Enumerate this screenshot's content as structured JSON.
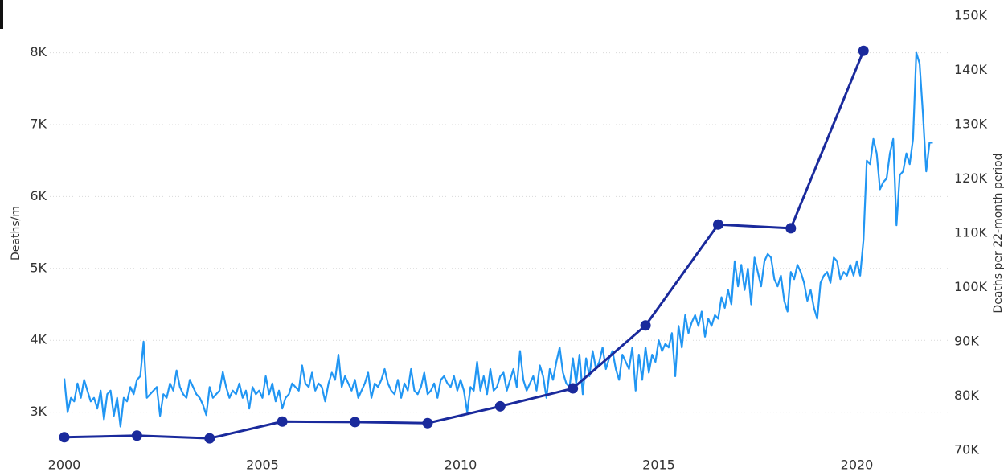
{
  "chart_data": {
    "type": "line",
    "y_label": "Deaths/m",
    "y2_label": "Deaths per 22-month period",
    "xlim": [
      2000,
      2022
    ],
    "xticks": [
      2000,
      2005,
      2010,
      2015,
      2020
    ],
    "ylim": [
      2470,
      8510
    ],
    "yticks": [
      {
        "value": 3000,
        "label": "3K"
      },
      {
        "value": 4000,
        "label": "4K"
      },
      {
        "value": 5000,
        "label": "5K"
      },
      {
        "value": 6000,
        "label": "6K"
      },
      {
        "value": 7000,
        "label": "7K"
      },
      {
        "value": 8000,
        "label": "8K"
      }
    ],
    "y2lim": [
      70000,
      150000
    ],
    "y2ticks": [
      {
        "value": 70000,
        "label": "70K"
      },
      {
        "value": 80000,
        "label": "80K"
      },
      {
        "value": 90000,
        "label": "90K"
      },
      {
        "value": 100000,
        "label": "100K"
      },
      {
        "value": 110000,
        "label": "110K"
      },
      {
        "value": 120000,
        "label": "120K"
      },
      {
        "value": 130000,
        "label": "130K"
      },
      {
        "value": 140000,
        "label": "140K"
      },
      {
        "value": 150000,
        "label": "150K"
      }
    ],
    "grid": true,
    "series": [
      {
        "color": "#2196f3",
        "axis": "y",
        "markers": false,
        "x": [
          2000,
          2000.083,
          2000.167,
          2000.25,
          2000.333,
          2000.417,
          2000.5,
          2000.583,
          2000.667,
          2000.75,
          2000.833,
          2000.917,
          2001,
          2001.083,
          2001.167,
          2001.25,
          2001.333,
          2001.417,
          2001.5,
          2001.583,
          2001.667,
          2001.75,
          2001.833,
          2001.917,
          2002,
          2002.083,
          2002.167,
          2002.25,
          2002.333,
          2002.417,
          2002.5,
          2002.583,
          2002.667,
          2002.75,
          2002.833,
          2002.917,
          2003,
          2003.083,
          2003.167,
          2003.25,
          2003.333,
          2003.417,
          2003.5,
          2003.583,
          2003.667,
          2003.75,
          2003.833,
          2003.917,
          2004,
          2004.083,
          2004.167,
          2004.25,
          2004.333,
          2004.417,
          2004.5,
          2004.583,
          2004.667,
          2004.75,
          2004.833,
          2004.917,
          2005,
          2005.083,
          2005.167,
          2005.25,
          2005.333,
          2005.417,
          2005.5,
          2005.583,
          2005.667,
          2005.75,
          2005.833,
          2005.917,
          2006,
          2006.083,
          2006.167,
          2006.25,
          2006.333,
          2006.417,
          2006.5,
          2006.583,
          2006.667,
          2006.75,
          2006.833,
          2006.917,
          2007,
          2007.083,
          2007.167,
          2007.25,
          2007.333,
          2007.417,
          2007.5,
          2007.583,
          2007.667,
          2007.75,
          2007.833,
          2007.917,
          2008,
          2008.083,
          2008.167,
          2008.25,
          2008.333,
          2008.417,
          2008.5,
          2008.583,
          2008.667,
          2008.75,
          2008.833,
          2008.917,
          2009,
          2009.083,
          2009.167,
          2009.25,
          2009.333,
          2009.417,
          2009.5,
          2009.583,
          2009.667,
          2009.75,
          2009.833,
          2009.917,
          2010,
          2010.083,
          2010.167,
          2010.25,
          2010.333,
          2010.417,
          2010.5,
          2010.583,
          2010.667,
          2010.75,
          2010.833,
          2010.917,
          2011,
          2011.083,
          2011.167,
          2011.25,
          2011.333,
          2011.417,
          2011.5,
          2011.583,
          2011.667,
          2011.75,
          2011.833,
          2011.917,
          2012,
          2012.083,
          2012.167,
          2012.25,
          2012.333,
          2012.417,
          2012.5,
          2012.583,
          2012.667,
          2012.75,
          2012.833,
          2012.917,
          2013,
          2013.083,
          2013.167,
          2013.25,
          2013.333,
          2013.417,
          2013.5,
          2013.583,
          2013.667,
          2013.75,
          2013.833,
          2013.917,
          2014,
          2014.083,
          2014.167,
          2014.25,
          2014.333,
          2014.417,
          2014.5,
          2014.583,
          2014.667,
          2014.75,
          2014.833,
          2014.917,
          2015,
          2015.083,
          2015.167,
          2015.25,
          2015.333,
          2015.417,
          2015.5,
          2015.583,
          2015.667,
          2015.75,
          2015.833,
          2015.917,
          2016,
          2016.083,
          2016.167,
          2016.25,
          2016.333,
          2016.417,
          2016.5,
          2016.583,
          2016.667,
          2016.75,
          2016.833,
          2016.917,
          2017,
          2017.083,
          2017.167,
          2017.25,
          2017.333,
          2017.417,
          2017.5,
          2017.583,
          2017.667,
          2017.75,
          2017.833,
          2017.917,
          2018,
          2018.083,
          2018.167,
          2018.25,
          2018.333,
          2018.417,
          2018.5,
          2018.583,
          2018.667,
          2018.75,
          2018.833,
          2018.917,
          2019,
          2019.083,
          2019.167,
          2019.25,
          2019.333,
          2019.417,
          2019.5,
          2019.583,
          2019.667,
          2019.75,
          2019.833,
          2019.917,
          2020,
          2020.083,
          2020.167,
          2020.25,
          2020.333,
          2020.417,
          2020.5,
          2020.583,
          2020.667,
          2020.75,
          2020.833,
          2020.917,
          2021,
          2021.083,
          2021.167,
          2021.25,
          2021.333,
          2021.417,
          2021.5,
          2021.583,
          2021.667,
          2021.75,
          2021.833,
          2021.917
        ],
        "values": [
          3470,
          3000,
          3200,
          3150,
          3400,
          3200,
          3450,
          3300,
          3150,
          3200,
          3050,
          3300,
          2900,
          3250,
          3300,
          2950,
          3200,
          2800,
          3200,
          3150,
          3350,
          3250,
          3450,
          3500,
          3980,
          3200,
          3250,
          3300,
          3350,
          2950,
          3250,
          3200,
          3400,
          3300,
          3580,
          3350,
          3250,
          3200,
          3450,
          3350,
          3250,
          3200,
          3100,
          2960,
          3350,
          3200,
          3250,
          3300,
          3560,
          3350,
          3200,
          3300,
          3250,
          3400,
          3200,
          3300,
          3050,
          3350,
          3250,
          3300,
          3200,
          3500,
          3250,
          3400,
          3150,
          3300,
          3050,
          3200,
          3250,
          3400,
          3350,
          3300,
          3650,
          3400,
          3350,
          3550,
          3300,
          3400,
          3350,
          3150,
          3400,
          3550,
          3450,
          3800,
          3350,
          3500,
          3400,
          3300,
          3450,
          3200,
          3300,
          3400,
          3550,
          3200,
          3400,
          3350,
          3450,
          3600,
          3400,
          3300,
          3250,
          3450,
          3200,
          3400,
          3300,
          3600,
          3300,
          3250,
          3350,
          3550,
          3250,
          3300,
          3400,
          3200,
          3450,
          3500,
          3400,
          3350,
          3500,
          3300,
          3450,
          3300,
          3000,
          3350,
          3300,
          3700,
          3300,
          3500,
          3250,
          3600,
          3300,
          3350,
          3500,
          3550,
          3300,
          3450,
          3600,
          3350,
          3850,
          3450,
          3300,
          3400,
          3500,
          3300,
          3650,
          3500,
          3200,
          3600,
          3450,
          3700,
          3900,
          3550,
          3400,
          3350,
          3750,
          3400,
          3800,
          3250,
          3750,
          3500,
          3850,
          3600,
          3700,
          3900,
          3600,
          3750,
          3850,
          3600,
          3450,
          3800,
          3700,
          3600,
          3900,
          3300,
          3800,
          3450,
          3900,
          3550,
          3800,
          3700,
          4000,
          3850,
          3950,
          3900,
          4100,
          3500,
          4200,
          3900,
          4350,
          4100,
          4250,
          4350,
          4200,
          4400,
          4050,
          4300,
          4200,
          4350,
          4300,
          4600,
          4450,
          4700,
          4500,
          5100,
          4750,
          5050,
          4700,
          5000,
          4500,
          5150,
          4950,
          4750,
          5100,
          5200,
          5150,
          4850,
          4750,
          4900,
          4550,
          4400,
          4950,
          4850,
          5050,
          4950,
          4800,
          4550,
          4700,
          4450,
          4300,
          4800,
          4900,
          4950,
          4800,
          5150,
          5100,
          4850,
          4950,
          4900,
          5050,
          4900,
          5100,
          4900,
          5400,
          6500,
          6450,
          6800,
          6600,
          6100,
          6200,
          6250,
          6600,
          6800,
          5600,
          6300,
          6350,
          6600,
          6450,
          6800,
          8000,
          7850,
          7150,
          6350,
          6750,
          6750
        ]
      },
      {
        "color": "#1a2a9c",
        "axis": "y2",
        "markers": true,
        "x": [
          2000,
          2001.833,
          2003.667,
          2005.5,
          2007.333,
          2009.167,
          2011,
          2012.833,
          2014.667,
          2016.5,
          2018.333,
          2020.167
        ],
        "values": [
          72400,
          72700,
          72200,
          75300,
          75200,
          75000,
          78100,
          81400,
          93000,
          111600,
          110900,
          143600
        ]
      }
    ]
  }
}
